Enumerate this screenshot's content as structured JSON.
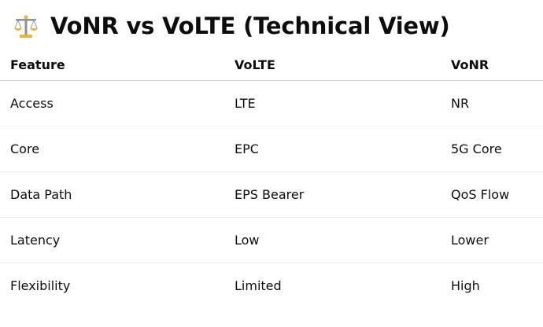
{
  "header": {
    "title": "VoNR vs VoLTE (Technical View)"
  },
  "table": {
    "columns": [
      "Feature",
      "VoLTE",
      "VoNR"
    ],
    "rows": [
      [
        "Access",
        "LTE",
        "NR"
      ],
      [
        "Core",
        "EPC",
        "5G Core"
      ],
      [
        "Data Path",
        "EPS Bearer",
        "QoS Flow"
      ],
      [
        "Latency",
        "Low",
        "Lower"
      ],
      [
        "Flexibility",
        "Limited",
        "High"
      ]
    ]
  }
}
